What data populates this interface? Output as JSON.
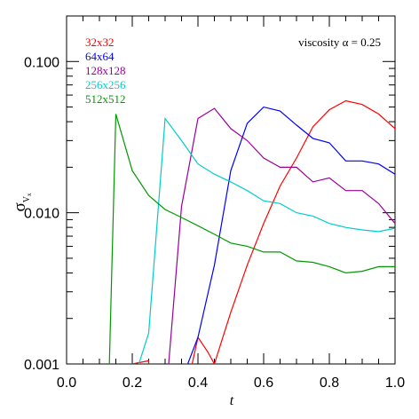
{
  "chart_data": {
    "type": "line",
    "title": "",
    "xlabel": "t",
    "ylabel": "σ",
    "ylabel_sub": "V",
    "ylabel_subsub": "x",
    "xlim": [
      0.0,
      1.0
    ],
    "ylim": [
      0.001,
      0.2
    ],
    "yscale": "log",
    "x_ticks": [
      0.0,
      0.2,
      0.4,
      0.6,
      0.8,
      1.0
    ],
    "x_tick_labels": [
      "0.0",
      "0.2",
      "0.4",
      "0.6",
      "0.8",
      "1.0"
    ],
    "y_ticks": [
      0.001,
      0.01,
      0.1
    ],
    "y_tick_labels": [
      "0.001",
      "0.010",
      "0.100"
    ],
    "legend_position": "top-left",
    "grid": false,
    "annotation": "viscosity α = 0.25",
    "series": [
      {
        "name": "32x32",
        "color": "#ff0000",
        "points": [
          [
            0.2,
            0.00095
          ],
          [
            0.2,
            0.001
          ],
          [
            0.25,
            0.00105
          ],
          [
            0.25,
            0.00095
          ],
          [
            0.38,
            0.00095
          ],
          [
            0.4,
            0.0015
          ],
          [
            0.43,
            0.0012
          ],
          [
            0.45,
            0.001
          ],
          [
            0.5,
            0.0022
          ],
          [
            0.55,
            0.0045
          ],
          [
            0.6,
            0.0085
          ],
          [
            0.65,
            0.015
          ],
          [
            0.7,
            0.023
          ],
          [
            0.75,
            0.037
          ],
          [
            0.8,
            0.048
          ],
          [
            0.85,
            0.055
          ],
          [
            0.9,
            0.052
          ],
          [
            0.95,
            0.045
          ],
          [
            1.0,
            0.036
          ]
        ]
      },
      {
        "name": "64x64",
        "color": "#0000ff",
        "points": [
          [
            0.365,
            0.00095
          ],
          [
            0.4,
            0.0015
          ],
          [
            0.45,
            0.0045
          ],
          [
            0.5,
            0.019
          ],
          [
            0.55,
            0.039
          ],
          [
            0.6,
            0.05
          ],
          [
            0.65,
            0.047
          ],
          [
            0.7,
            0.038
          ],
          [
            0.75,
            0.031
          ],
          [
            0.8,
            0.029
          ],
          [
            0.85,
            0.022
          ],
          [
            0.9,
            0.022
          ],
          [
            0.95,
            0.021
          ],
          [
            1.0,
            0.018
          ]
        ]
      },
      {
        "name": "128x128",
        "color": "#990099",
        "points": [
          [
            0.31,
            0.00095
          ],
          [
            0.35,
            0.011
          ],
          [
            0.4,
            0.042
          ],
          [
            0.45,
            0.049
          ],
          [
            0.5,
            0.036
          ],
          [
            0.55,
            0.03
          ],
          [
            0.6,
            0.023
          ],
          [
            0.65,
            0.02
          ],
          [
            0.7,
            0.02
          ],
          [
            0.75,
            0.016
          ],
          [
            0.8,
            0.017
          ],
          [
            0.85,
            0.014
          ],
          [
            0.9,
            0.014
          ],
          [
            0.95,
            0.0115
          ],
          [
            1.0,
            0.0085
          ]
        ]
      },
      {
        "name": "256x256",
        "color": "#00cccc",
        "points": [
          [
            0.2,
            0.00095
          ],
          [
            0.22,
            0.001
          ],
          [
            0.25,
            0.0016
          ],
          [
            0.3,
            0.042
          ],
          [
            0.35,
            0.03
          ],
          [
            0.4,
            0.021
          ],
          [
            0.45,
            0.018
          ],
          [
            0.5,
            0.016
          ],
          [
            0.55,
            0.014
          ],
          [
            0.6,
            0.012
          ],
          [
            0.65,
            0.0115
          ],
          [
            0.7,
            0.01
          ],
          [
            0.75,
            0.0095
          ],
          [
            0.8,
            0.0085
          ],
          [
            0.85,
            0.008
          ],
          [
            0.9,
            0.0077
          ],
          [
            0.95,
            0.0075
          ],
          [
            1.0,
            0.0079
          ]
        ]
      },
      {
        "name": "512x512",
        "color": "#009900",
        "points": [
          [
            0.13,
            0.00095
          ],
          [
            0.15,
            0.045
          ],
          [
            0.2,
            0.019
          ],
          [
            0.25,
            0.013
          ],
          [
            0.3,
            0.0105
          ],
          [
            0.35,
            0.0093
          ],
          [
            0.4,
            0.0082
          ],
          [
            0.45,
            0.0072
          ],
          [
            0.5,
            0.0063
          ],
          [
            0.55,
            0.006
          ],
          [
            0.6,
            0.0055
          ],
          [
            0.65,
            0.0055
          ],
          [
            0.7,
            0.0048
          ],
          [
            0.75,
            0.0047
          ],
          [
            0.8,
            0.0044
          ],
          [
            0.85,
            0.004
          ],
          [
            0.9,
            0.0041
          ],
          [
            0.95,
            0.0044
          ],
          [
            1.0,
            0.0044
          ]
        ]
      }
    ]
  }
}
